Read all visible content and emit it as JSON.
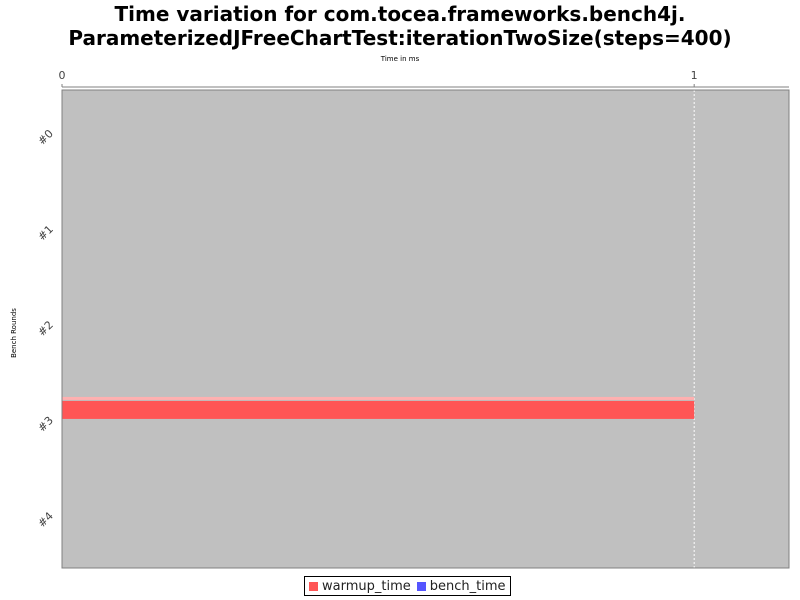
{
  "chart_data": {
    "type": "bar",
    "orientation": "horizontal",
    "title_line1": "Time variation for com.tocea.frameworks.bench4j.",
    "title_line2": "ParameterizedJFreeChartTest:iterationTwoSize(steps=400)",
    "xlabel": "Time in ms",
    "ylabel": "Bench Rounds",
    "x_ticks": [
      "0",
      "1"
    ],
    "xlim": [
      0,
      1.15
    ],
    "categories": [
      "#0",
      "#1",
      "#2",
      "#3",
      "#4"
    ],
    "series": [
      {
        "name": "warmup_time",
        "color": "#ff5555",
        "values": [
          0,
          0,
          0,
          1,
          0
        ]
      },
      {
        "name": "bench_time",
        "color": "#5555ff",
        "values": [
          0,
          0,
          0,
          0,
          0
        ]
      }
    ],
    "grid": true,
    "legend": "bottom",
    "plot_background": "#c0c0c0"
  }
}
